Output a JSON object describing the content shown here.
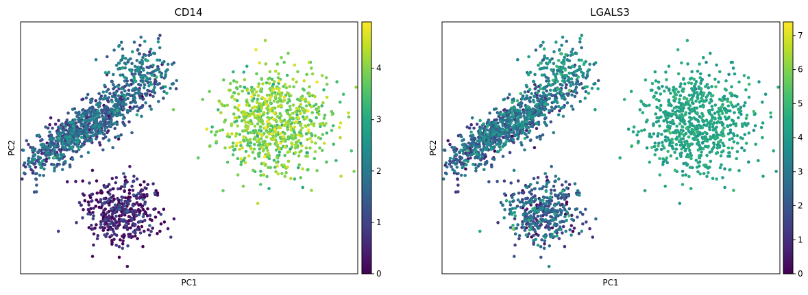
{
  "chart_data": [
    {
      "type": "scatter",
      "title": "CD14",
      "xlabel": "PC1",
      "ylabel": "PC2",
      "x_ticks_shown": false,
      "y_ticks_shown": false,
      "grid": false,
      "colormap": "viridis",
      "color_range": [
        0,
        4.9
      ],
      "colorbar_ticks": [
        0,
        1,
        2,
        3,
        4
      ],
      "colorbar_tick_labels": [
        "0",
        "1",
        "2",
        "3",
        "4"
      ],
      "xlim": [
        -10,
        10
      ],
      "ylim": [
        -8,
        8
      ],
      "clusters": [
        {
          "role": "elongated",
          "center": [
            -6.2,
            1.3
          ],
          "spread": [
            2.4,
            0.6
          ],
          "angle_deg": 35,
          "count": 900,
          "color_mean": 1.4,
          "color_sd": 0.6
        },
        {
          "role": "upper-tip",
          "center": [
            -2.8,
            4.8
          ],
          "spread": [
            1.0,
            0.9
          ],
          "count": 180,
          "color_mean": 1.8,
          "color_sd": 0.6
        },
        {
          "role": "lower",
          "center": [
            -4.0,
            -4.0
          ],
          "spread": [
            1.2,
            1.1
          ],
          "count": 420,
          "color_mean": 0.35,
          "color_sd": 0.5
        },
        {
          "role": "right",
          "center": [
            5.0,
            1.6
          ],
          "spread": [
            1.6,
            1.6
          ],
          "count": 750,
          "color_mean": 3.9,
          "color_sd": 0.45
        }
      ]
    },
    {
      "type": "scatter",
      "title": "LGALS3",
      "xlabel": "PC1",
      "ylabel": "PC2",
      "x_ticks_shown": false,
      "y_ticks_shown": false,
      "grid": false,
      "colormap": "viridis",
      "color_range": [
        0,
        7.4
      ],
      "colorbar_ticks": [
        0,
        1,
        2,
        3,
        4,
        5,
        6,
        7
      ],
      "colorbar_tick_labels": [
        "0",
        "1",
        "2",
        "3",
        "4",
        "5",
        "6",
        "7"
      ],
      "xlim": [
        -10,
        10
      ],
      "ylim": [
        -8,
        8
      ],
      "clusters": [
        {
          "role": "elongated",
          "center": [
            -6.2,
            1.3
          ],
          "spread": [
            2.4,
            0.6
          ],
          "angle_deg": 35,
          "count": 900,
          "color_mean": 2.4,
          "color_sd": 1.0
        },
        {
          "role": "upper-tip",
          "center": [
            -2.8,
            4.8
          ],
          "spread": [
            1.0,
            0.9
          ],
          "count": 180,
          "color_mean": 3.6,
          "color_sd": 0.8
        },
        {
          "role": "lower",
          "center": [
            -4.0,
            -4.0
          ],
          "spread": [
            1.2,
            1.1
          ],
          "count": 420,
          "color_mean": 2.2,
          "color_sd": 1.1
        },
        {
          "role": "right",
          "center": [
            5.0,
            1.6
          ],
          "spread": [
            1.6,
            1.6
          ],
          "count": 750,
          "color_mean": 4.3,
          "color_sd": 0.35
        }
      ]
    }
  ]
}
